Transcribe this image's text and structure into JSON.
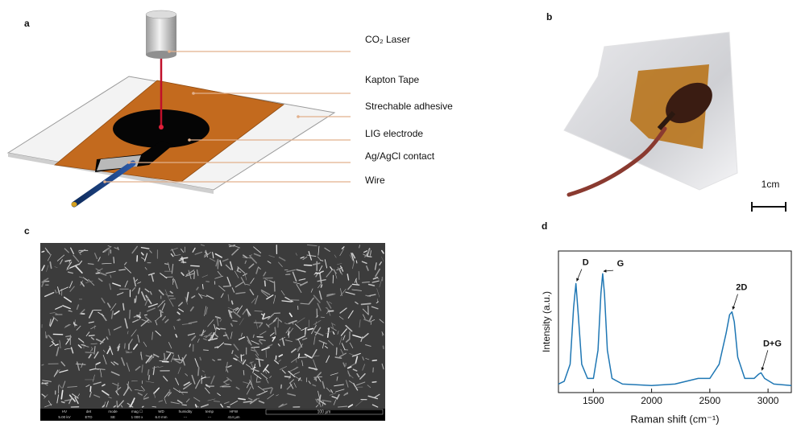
{
  "panel_labels": [
    "a",
    "b",
    "c",
    "d"
  ],
  "diagram": {
    "labels": [
      "CO₂ Laser",
      "Kapton Tape",
      "Strechable adhesive",
      "LIG electrode",
      "Ag/AgCl contact",
      "Wire"
    ]
  },
  "photo": {
    "scale_bar": "1cm"
  },
  "sem": {
    "info_headers": [
      "HV",
      "det",
      "mode",
      "mag ☐",
      "WD",
      "humidity",
      "temp",
      "HFW"
    ],
    "info_values": [
      "5.00 kV",
      "ETD",
      "SE",
      "1 000 x",
      "6.0 mm",
      "---",
      "---",
      "414 µm"
    ],
    "scale_bar": "100 µm"
  },
  "chart_data": {
    "type": "line",
    "xlabel": "Raman shift (cm⁻¹)",
    "ylabel": "Intensity (a.u.)",
    "x": [
      1200,
      1250,
      1300,
      1330,
      1350,
      1370,
      1400,
      1450,
      1500,
      1540,
      1565,
      1580,
      1595,
      1620,
      1660,
      1750,
      2000,
      2200,
      2400,
      2500,
      2580,
      2640,
      2670,
      2690,
      2710,
      2740,
      2800,
      2880,
      2920,
      2940,
      2970,
      3050,
      3200
    ],
    "values": [
      0.06,
      0.08,
      0.2,
      0.6,
      0.77,
      0.55,
      0.2,
      0.1,
      0.1,
      0.3,
      0.7,
      0.84,
      0.7,
      0.3,
      0.1,
      0.06,
      0.05,
      0.06,
      0.1,
      0.1,
      0.2,
      0.42,
      0.55,
      0.57,
      0.5,
      0.25,
      0.1,
      0.1,
      0.13,
      0.14,
      0.1,
      0.06,
      0.05
    ],
    "color": "#1f77b4",
    "xlim": [
      1200,
      3200
    ],
    "ylim": [
      0,
      1
    ],
    "xticks": [
      1500,
      2000,
      2500,
      3000
    ],
    "annotations": [
      {
        "text": "D",
        "x": 1350,
        "y": 0.77
      },
      {
        "text": "G",
        "x": 1580,
        "y": 0.84
      },
      {
        "text": "2D",
        "x": 2690,
        "y": 0.57
      },
      {
        "text": "D+G",
        "x": 2940,
        "y": 0.14
      }
    ]
  }
}
